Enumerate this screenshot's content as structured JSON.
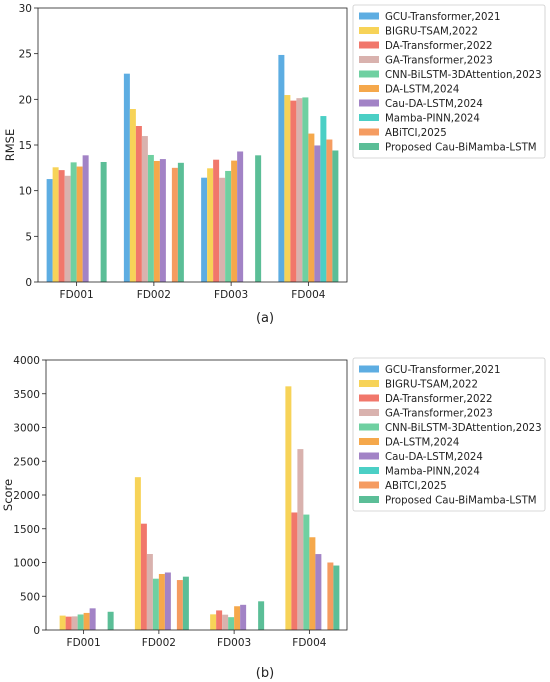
{
  "figure": {
    "colors": [
      "#5DADE2",
      "#F7D358",
      "#F1776B",
      "#D9B2AE",
      "#6FD0A1",
      "#F5A84B",
      "#A283C6",
      "#4BCFC5",
      "#F59C61",
      "#5BBE97"
    ]
  },
  "chart_data": [
    {
      "type": "bar",
      "panel_label": "(a)",
      "ylabel": "RMSE",
      "xlabel": "",
      "ylim": [
        0,
        30
      ],
      "yticks": [
        "0",
        "5",
        "10",
        "15",
        "20",
        "25",
        "30"
      ],
      "categories": [
        "FD001",
        "FD002",
        "FD003",
        "FD004"
      ],
      "legend_position": "right",
      "grid": false,
      "series": [
        {
          "name": "GCU-Transformer,2021",
          "values": [
            11.27,
            22.81,
            11.42,
            24.86
          ]
        },
        {
          "name": "BIGRU-TSAM,2022",
          "values": [
            12.56,
            18.94,
            12.45,
            20.47
          ]
        },
        {
          "name": "DA-Transformer,2022",
          "values": [
            12.25,
            17.08,
            13.39,
            19.86
          ]
        },
        {
          "name": "GA-Transformer,2023",
          "values": [
            11.63,
            15.98,
            11.41,
            20.13
          ]
        },
        {
          "name": "CNN-BiLSTM-3DAttention,2023",
          "values": [
            13.1,
            13.91,
            12.16,
            20.21
          ]
        },
        {
          "name": "DA-LSTM,2024",
          "values": [
            12.64,
            13.25,
            13.29,
            16.25
          ]
        },
        {
          "name": "Cau-DA-LSTM,2024",
          "values": [
            13.87,
            13.46,
            14.29,
            14.95
          ]
        },
        {
          "name": "Mamba-PINN,2024",
          "values": [
            null,
            null,
            null,
            18.17
          ]
        },
        {
          "name": "ABiTCI,2025",
          "values": [
            null,
            12.5,
            null,
            15.6
          ]
        },
        {
          "name": "Proposed Cau-BiMamba-LSTM",
          "values": [
            13.14,
            13.05,
            13.87,
            14.4
          ]
        }
      ]
    },
    {
      "type": "bar",
      "panel_label": "(b)",
      "ylabel": "Score",
      "xlabel": "",
      "ylim": [
        0,
        4000
      ],
      "yticks": [
        "0",
        "500",
        "1000",
        "1500",
        "2000",
        "2500",
        "3000",
        "3500",
        "4000"
      ],
      "categories": [
        "FD001",
        "FD002",
        "FD003",
        "FD004"
      ],
      "legend_position": "right",
      "grid": false,
      "series": [
        {
          "name": "GCU-Transformer,2021",
          "values": [
            null,
            null,
            null,
            null
          ]
        },
        {
          "name": "BIGRU-TSAM,2022",
          "values": [
            213,
            2264,
            232,
            3610
          ]
        },
        {
          "name": "DA-Transformer,2022",
          "values": [
            198,
            1575,
            290,
            1741
          ]
        },
        {
          "name": "GA-Transformer,2023",
          "values": [
            202,
            1126,
            227,
            2680
          ]
        },
        {
          "name": "CNN-BiLSTM-3DAttention,2023",
          "values": [
            230,
            760,
            190,
            1710
          ]
        },
        {
          "name": "DA-LSTM,2024",
          "values": [
            253,
            830,
            352,
            1374
          ]
        },
        {
          "name": "Cau-DA-LSTM,2024",
          "values": [
            321,
            852,
            373,
            1125
          ]
        },
        {
          "name": "Mamba-PINN,2024",
          "values": [
            null,
            null,
            null,
            null
          ]
        },
        {
          "name": "ABiTCI,2025",
          "values": [
            null,
            740,
            null,
            1000
          ]
        },
        {
          "name": "Proposed Cau-BiMamba-LSTM",
          "values": [
            270,
            790,
            425,
            955
          ]
        }
      ]
    }
  ]
}
